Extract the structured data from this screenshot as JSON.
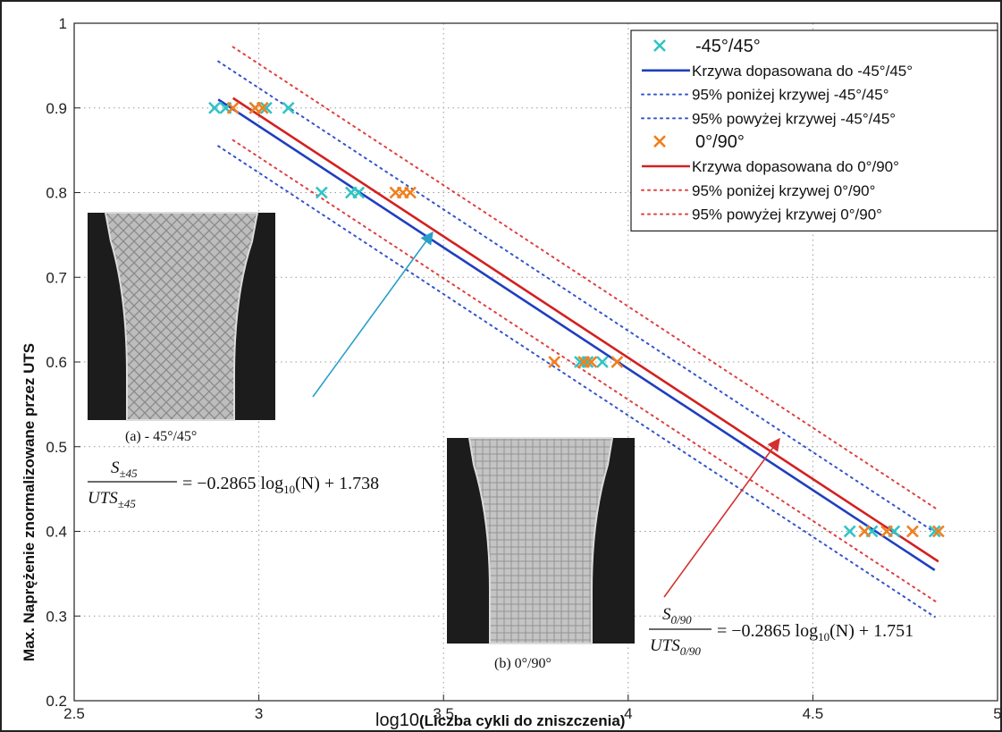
{
  "chart_data": {
    "type": "scatter",
    "xlabel_prefix": "log10",
    "xlabel_main": "(Liczba cykli do zniszczenia)",
    "ylabel": "Max. Naprężenie znormalizowane  przez UTS",
    "xlim": [
      2.5,
      5.0
    ],
    "ylim": [
      0.2,
      1.0
    ],
    "x_ticks": [
      2.5,
      3.0,
      3.5,
      4.0,
      4.5,
      5.0
    ],
    "x_tick_labels": [
      "2.5",
      "3",
      "3.5",
      "4",
      "4.5",
      "5"
    ],
    "y_ticks": [
      0.2,
      0.3,
      0.4,
      0.5,
      0.6,
      0.7,
      0.8,
      0.9,
      1.0
    ],
    "y_tick_labels": [
      "0.2",
      "0.3",
      "0.4",
      "0.5",
      "0.6",
      "0.7",
      "0.8",
      "0.9",
      "1"
    ],
    "grid": true,
    "legend_position": "top-right",
    "series": [
      {
        "name": "-45°/45°",
        "kind": "points",
        "color": "#2ec4c4",
        "x": [
          2.88,
          2.91,
          2.99,
          3.02,
          3.08,
          3.17,
          3.25,
          3.27,
          3.87,
          3.89,
          3.93,
          4.6,
          4.66,
          4.72,
          4.83
        ],
        "y": [
          0.9,
          0.9,
          0.9,
          0.9,
          0.9,
          0.8,
          0.8,
          0.8,
          0.6,
          0.6,
          0.6,
          0.4,
          0.4,
          0.4,
          0.4
        ]
      },
      {
        "name": "Krzywa dopasowana do -45°/45°",
        "kind": "line",
        "color": "#1f3fbf",
        "dash": "solid",
        "x": [
          2.89,
          4.83
        ],
        "y": [
          0.91,
          0.3542
        ]
      },
      {
        "name": "95% poniżej krzywej -45°/45°",
        "kind": "line",
        "color": "#3355cc",
        "dash": "dotted",
        "x": [
          2.89,
          4.83
        ],
        "y": [
          0.855,
          0.299
        ]
      },
      {
        "name": "95% powyżej krzywej -45°/45°",
        "kind": "line",
        "color": "#3355cc",
        "dash": "dotted",
        "x": [
          2.89,
          4.83
        ],
        "y": [
          0.955,
          0.399
        ]
      },
      {
        "name": "0°/90°",
        "kind": "points",
        "color": "#f07f1f",
        "x": [
          2.93,
          2.99,
          3.01,
          3.37,
          3.39,
          3.41,
          3.8,
          3.88,
          3.9,
          3.97,
          4.64,
          4.7,
          4.77,
          4.84
        ],
        "y": [
          0.9,
          0.9,
          0.9,
          0.8,
          0.8,
          0.8,
          0.6,
          0.6,
          0.6,
          0.6,
          0.4,
          0.4,
          0.4,
          0.4
        ]
      },
      {
        "name": "Krzywa dopasowana do 0°/90°",
        "kind": "line",
        "color": "#d42020",
        "dash": "solid",
        "x": [
          2.93,
          4.84
        ],
        "y": [
          0.9116,
          0.3644
        ]
      },
      {
        "name": "95% poniżej krzywej 0°/90°",
        "kind": "line",
        "color": "#e04040",
        "dash": "dotted",
        "x": [
          2.93,
          4.84
        ],
        "y": [
          0.862,
          0.315
        ]
      },
      {
        "name": "95% powyżej krzywej 0°/90°",
        "kind": "line",
        "color": "#e04040",
        "dash": "dotted",
        "x": [
          2.93,
          4.84
        ],
        "y": [
          0.972,
          0.425
        ]
      }
    ],
    "annotations": {
      "inset_a_caption": "(a) - 45°/45°",
      "inset_b_caption": "(b) 0°/90°",
      "eq_a": {
        "num": "S",
        "num_sub": "±45",
        "den": "UTS",
        "den_sub": "±45",
        "rhs_pre": "= −0.2865 log",
        "rhs_sub": "10",
        "rhs_post": "(N) + 1.738"
      },
      "eq_b": {
        "num": "S",
        "num_sub": "0/90",
        "den": "UTS",
        "den_sub": "0/90",
        "rhs_pre": "= −0.2865 log",
        "rhs_sub": "10",
        "rhs_post": "(N) + 1.751"
      },
      "arrow_a_color": "#2a9fc9",
      "arrow_b_color": "#d43030"
    }
  }
}
